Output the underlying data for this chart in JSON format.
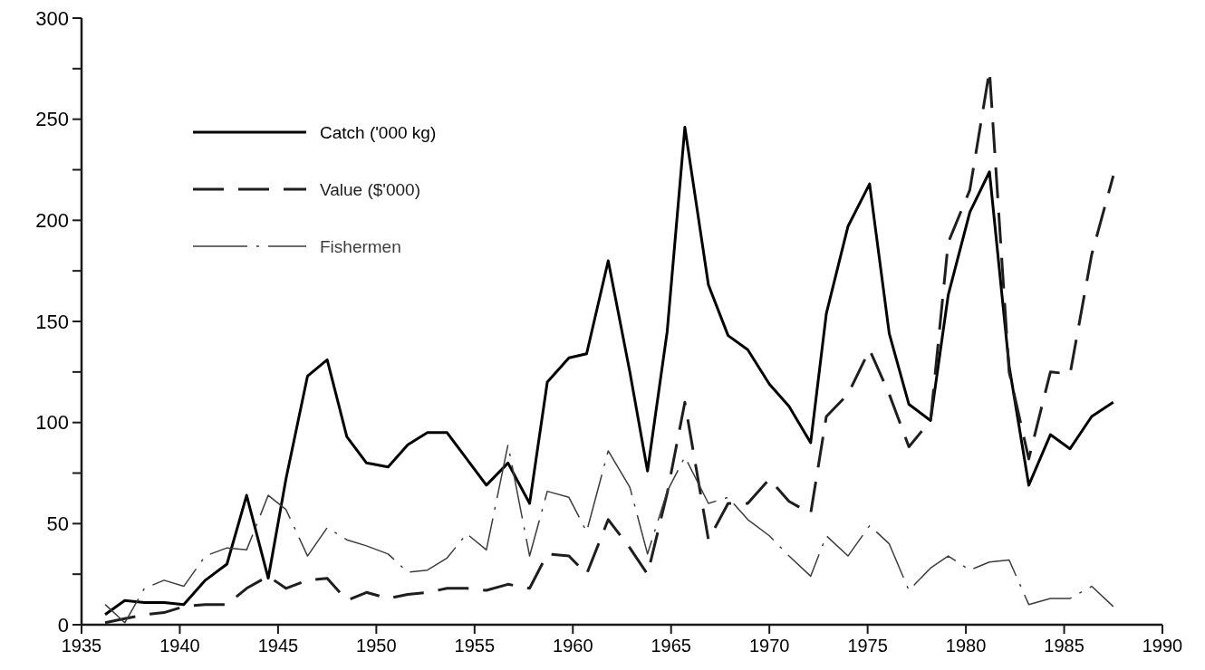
{
  "chart_data": {
    "type": "line",
    "x": [
      1936.2,
      1937.2,
      1938.2,
      1939.2,
      1940.2,
      1941.3,
      1942.4,
      1943.4,
      1944.5,
      1945.4,
      1946.5,
      1947.5,
      1948.5,
      1949.5,
      1950.6,
      1951.6,
      1952.6,
      1953.6,
      1954.6,
      1955.6,
      1956.7,
      1957.8,
      1958.7,
      1959.8,
      1960.7,
      1961.8,
      1962.9,
      1963.8,
      1964.8,
      1965.7,
      1966.9,
      1967.9,
      1968.9,
      1970.0,
      1971.0,
      1972.1,
      1972.9,
      1974.0,
      1975.1,
      1976.1,
      1977.1,
      1978.2,
      1979.1,
      1980.2,
      1981.2,
      1982.2,
      1983.2,
      1984.3,
      1985.3,
      1986.4,
      1987.5
    ],
    "series": [
      {
        "name": "Catch ('000 kg)",
        "color": "#000000",
        "line_style": "solid",
        "values": [
          5,
          12,
          11,
          11,
          10,
          22,
          30,
          64,
          23,
          72,
          123,
          131,
          93,
          80,
          78,
          89,
          95,
          95,
          82,
          69,
          80,
          60,
          120,
          132,
          134,
          180,
          125,
          76,
          145,
          246,
          168,
          143,
          136,
          119,
          108,
          90,
          154,
          197,
          218,
          144,
          109,
          101,
          163,
          204,
          224,
          128,
          69,
          94,
          87,
          103,
          110
        ]
      },
      {
        "name": "Value ($'000)",
        "color": "#1e1e1e",
        "line_style": "dashed",
        "values": [
          1,
          3,
          5,
          6,
          9,
          10,
          10,
          18,
          24,
          18,
          22,
          23,
          12,
          16,
          13,
          15,
          16,
          18,
          18,
          17,
          20,
          18,
          35,
          34,
          25,
          52,
          38,
          25,
          65,
          110,
          42,
          60,
          60,
          72,
          61,
          55,
          103,
          114,
          136,
          114,
          88,
          101,
          189,
          215,
          274,
          125,
          82,
          125,
          124,
          183,
          222
        ]
      },
      {
        "name": "Fishermen",
        "color": "#3c3c3c",
        "line_style": "dashdot",
        "values": [
          10,
          1,
          18,
          22,
          19,
          34,
          38,
          37,
          64,
          57,
          34,
          48,
          42,
          39,
          35,
          26,
          27,
          33,
          45,
          37,
          89,
          34,
          66,
          63,
          46,
          86,
          68,
          35,
          66,
          83,
          60,
          63,
          52,
          44,
          34,
          24,
          44,
          34,
          49,
          40,
          17,
          28,
          34,
          27,
          31,
          32,
          10,
          13,
          13,
          19,
          9
        ]
      }
    ],
    "xlim": [
      1935,
      1990
    ],
    "xticks": [
      1935,
      1940,
      1945,
      1950,
      1955,
      1960,
      1965,
      1970,
      1975,
      1980,
      1985,
      1990
    ],
    "ylim": [
      0,
      300
    ],
    "yticks": [
      0,
      {
        "value": 25,
        "label": null
      },
      50,
      {
        "value": 75,
        "label": null
      },
      100,
      {
        "value": 125,
        "label": null
      },
      150,
      {
        "value": 175,
        "label": null
      },
      200,
      {
        "value": 225,
        "label": null
      },
      250,
      {
        "value": 275,
        "label": null
      },
      300
    ],
    "grid": false,
    "legend": "top left"
  }
}
